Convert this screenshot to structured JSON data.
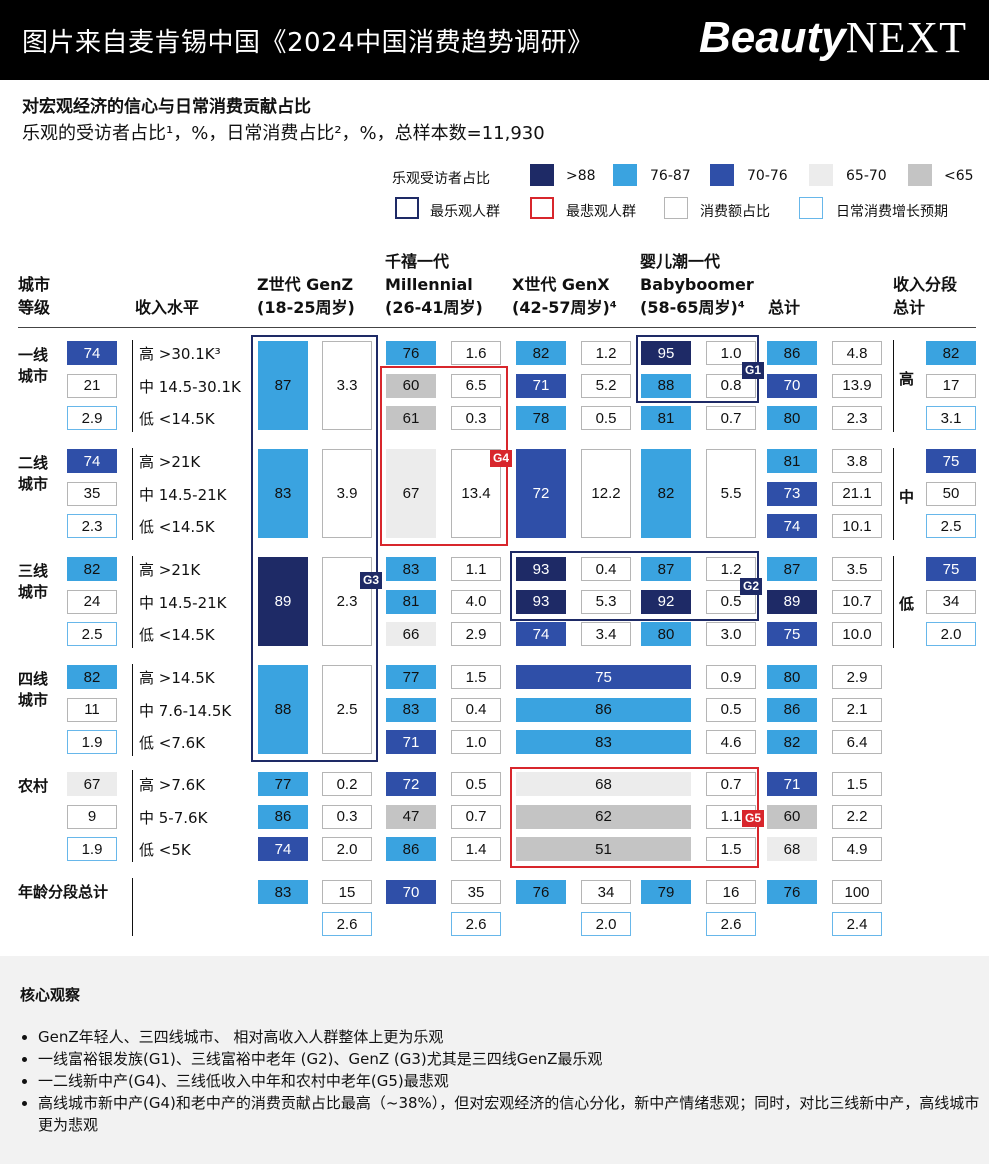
{
  "header": {
    "banner": "图片来自麦肯锡中国《2024中国消费趋势调研》",
    "brand_bold": "Beauty",
    "brand_serif": "NEXT",
    "title": "对宏观经济的信心与日常消费贡献占比",
    "subtitle": "乐观的受访者占比¹，%，日常消费占比²，%，总样本数=11,930"
  },
  "legend": {
    "optimistic_label": "乐观受访者占比",
    "bins": [
      {
        "label": ">88",
        "color": "#1e2a66"
      },
      {
        "label": "76-87",
        "color": "#3aa3e0"
      },
      {
        "label": "70-76",
        "color": "#2f4fa8"
      },
      {
        "label": "65-70",
        "color": "#ececec"
      },
      {
        "label": "<65",
        "color": "#c4c4c4"
      }
    ],
    "most_optimistic": "最乐观人群",
    "most_pessimistic": "最悲观人群",
    "share_label": "消费额占比",
    "growth_label": "日常消费增长预期"
  },
  "columns": {
    "tier": "城市\n等级",
    "income": "收入水平",
    "genz": "Z世代 GenZ\n(18-25周岁)",
    "millennial": "千禧一代\nMillennial\n(26-41周岁)",
    "genx": "X世代 GenX\n(42-57周岁)⁴",
    "boomer": "婴儿潮一代\nBabyboomer\n(58-65周岁)⁴",
    "total": "总计",
    "income_total": "收入分段\n总计"
  },
  "chart_data": {
    "type": "table",
    "title": "对宏观经济的信心与日常消费贡献占比",
    "tiers": [
      {
        "label": "一线\n城市",
        "tier_totals": [
          "74",
          "21",
          "2.9"
        ],
        "rows": [
          {
            "income": "高 >30.1K³",
            "genz": [
              "87",
              "3.3"
            ],
            "millennial": [
              "76",
              "1.6"
            ],
            "genx": [
              "82",
              "1.2"
            ],
            "boomer": [
              "95",
              "1.0"
            ],
            "total": [
              "86",
              "4.8"
            ]
          },
          {
            "income": "中 14.5-30.1K",
            "genz": null,
            "millennial": [
              "60",
              "6.5"
            ],
            "genx": [
              "71",
              "5.2"
            ],
            "boomer": [
              "88",
              "0.8"
            ],
            "total": [
              "70",
              "13.9"
            ]
          },
          {
            "income": "低 <14.5K",
            "genz": null,
            "millennial": [
              "61",
              "0.3"
            ],
            "genx": [
              "78",
              "0.5"
            ],
            "boomer": [
              "81",
              "0.7"
            ],
            "total": [
              "80",
              "2.3"
            ]
          }
        ]
      },
      {
        "label": "二线\n城市",
        "tier_totals": [
          "74",
          "35",
          "2.3"
        ],
        "rows": [
          {
            "income": "高 >21K",
            "genz": [
              "83",
              "3.9"
            ],
            "millennial": [
              "67",
              "13.4"
            ],
            "genx": [
              "72",
              "12.2"
            ],
            "boomer": [
              "82",
              "5.5"
            ],
            "total": [
              "81",
              "3.8"
            ]
          },
          {
            "income": "中 14.5-21K",
            "total": [
              "73",
              "21.1"
            ]
          },
          {
            "income": "低 <14.5K",
            "total": [
              "74",
              "10.1"
            ]
          }
        ]
      },
      {
        "label": "三线\n城市",
        "tier_totals": [
          "82",
          "24",
          "2.5"
        ],
        "rows": [
          {
            "income": "高 >21K",
            "genz": [
              "89",
              "2.3"
            ],
            "millennial": [
              "83",
              "1.1"
            ],
            "genx": [
              "93",
              "0.4"
            ],
            "boomer": [
              "87",
              "1.2"
            ],
            "total": [
              "87",
              "3.5"
            ]
          },
          {
            "income": "中 14.5-21K",
            "millennial": [
              "81",
              "4.0"
            ],
            "genx": [
              "93",
              "5.3"
            ],
            "boomer": [
              "92",
              "0.5"
            ],
            "total": [
              "89",
              "10.7"
            ]
          },
          {
            "income": "低 <14.5K",
            "millennial": [
              "66",
              "2.9"
            ],
            "genx": [
              "74",
              "3.4"
            ],
            "boomer": [
              "80",
              "3.0"
            ],
            "total": [
              "75",
              "10.0"
            ]
          }
        ]
      },
      {
        "label": "四线\n城市",
        "tier_totals": [
          "82",
          "11",
          "1.9"
        ],
        "rows": [
          {
            "income": "高 >14.5K",
            "genz": [
              "88",
              "2.5"
            ],
            "millennial": [
              "77",
              "1.5"
            ],
            "genx_boomer": [
              "75",
              "0.9"
            ],
            "total": [
              "80",
              "2.9"
            ]
          },
          {
            "income": "中 7.6-14.5K",
            "millennial": [
              "83",
              "0.4"
            ],
            "genx_boomer": [
              "86",
              "0.5"
            ],
            "total": [
              "86",
              "2.1"
            ]
          },
          {
            "income": "低 <7.6K",
            "millennial": [
              "71",
              "1.0"
            ],
            "genx_boomer": [
              "83",
              "4.6"
            ],
            "total": [
              "82",
              "6.4"
            ]
          }
        ]
      },
      {
        "label": "农村",
        "tier_totals": [
          "67",
          "9",
          "1.9"
        ],
        "rows": [
          {
            "income": "高 >7.6K",
            "genz": [
              "77",
              "0.2"
            ],
            "millennial": [
              "72",
              "0.5"
            ],
            "genx_boomer": [
              "68",
              "0.7"
            ],
            "total": [
              "71",
              "1.5"
            ]
          },
          {
            "income": "中 5-7.6K",
            "genz": [
              "86",
              "0.3"
            ],
            "millennial": [
              "47",
              "0.7"
            ],
            "genx_boomer": [
              "62",
              "1.1"
            ],
            "total": [
              "60",
              "2.2"
            ]
          },
          {
            "income": "低 <5K",
            "genz": [
              "74",
              "2.0"
            ],
            "millennial": [
              "86",
              "1.4"
            ],
            "genx_boomer": [
              "51",
              "1.5"
            ],
            "total": [
              "68",
              "4.9"
            ]
          }
        ]
      }
    ],
    "age_total_label": "年龄分段总计",
    "age_totals": {
      "genz": [
        "83",
        "15",
        "2.6"
      ],
      "millennial": [
        "70",
        "35",
        "2.6"
      ],
      "genx": [
        "76",
        "34",
        "2.0"
      ],
      "boomer": [
        "79",
        "16",
        "2.6"
      ],
      "total": [
        "76",
        "100",
        "2.4"
      ]
    },
    "income_totals": {
      "high": {
        "label": "高",
        "values": [
          "82",
          "17",
          "3.1"
        ]
      },
      "mid": {
        "label": "中",
        "values": [
          "75",
          "50",
          "2.5"
        ]
      },
      "low": {
        "label": "低",
        "values": [
          "75",
          "34",
          "2.0"
        ]
      }
    },
    "groups": [
      "G1",
      "G2",
      "G3",
      "G4",
      "G5"
    ]
  },
  "insights": {
    "heading": "核心观察",
    "bullets": [
      "GenZ年轻人、三四线城市、 相对高收入人群整体上更为乐观",
      "一线富裕银发族(G1)、三线富裕中老年 (G2)、GenZ (G3)尤其是三四线GenZ最乐观",
      "一二线新中产(G4)、三线低收入中年和农村中老年(G5)最悲观",
      "高线城市新中产(G4)和老中产的消费贡献占比最高（~38%），但对宏观经济的信心分化，新中产情绪悲观；同时，对比三线新中产，高线城市更为悲观"
    ]
  }
}
